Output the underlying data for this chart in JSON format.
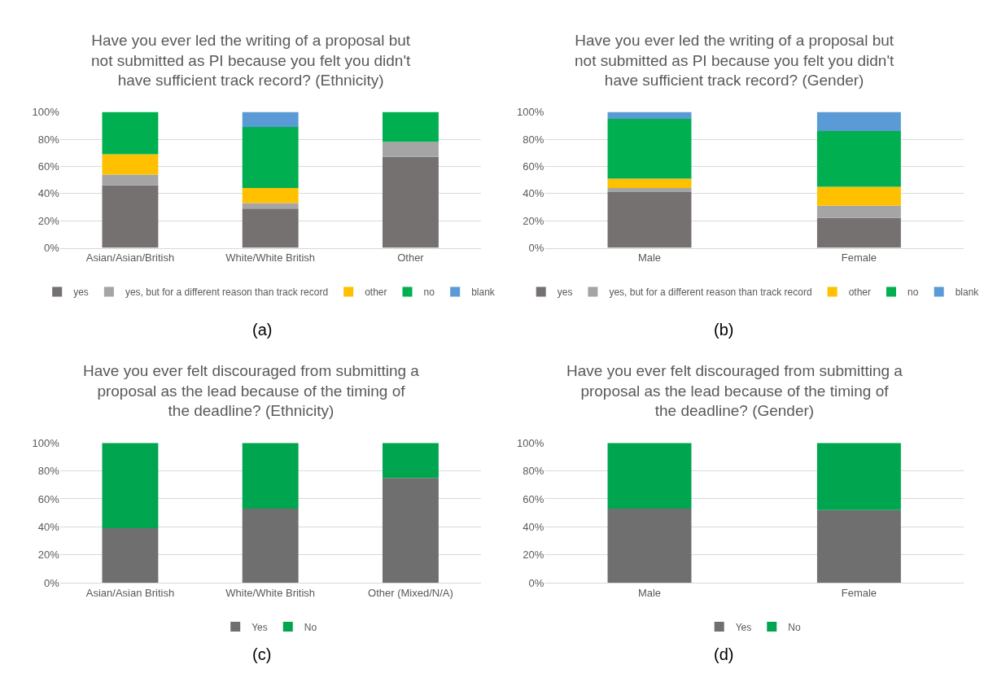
{
  "chart_data": [
    {
      "type": "bar",
      "stacked": true,
      "title": "Have you ever led the writing of a proposal but not submitted as PI because you felt you didn't have sufficient track record? (Ethnicity)",
      "categories": [
        "Asian/Asian/British",
        "White/White British",
        "Other"
      ],
      "series": [
        {
          "name": "yes",
          "color": "#767171",
          "values": [
            46,
            29,
            67
          ]
        },
        {
          "name": "yes, but for a different reason than track record",
          "color": "#a5a5a5",
          "values": [
            8,
            4,
            11
          ]
        },
        {
          "name": "other",
          "color": "#ffc000",
          "values": [
            15,
            11,
            0
          ]
        },
        {
          "name": "no",
          "color": "#00b050",
          "values": [
            31,
            45,
            22
          ]
        },
        {
          "name": "blank",
          "color": "#5b9bd5",
          "values": [
            0,
            11,
            0
          ]
        }
      ],
      "ylim": [
        0,
        100
      ],
      "yticks": [
        {
          "value": 0,
          "label": "0%"
        },
        {
          "value": 20,
          "label": "20%"
        },
        {
          "value": 40,
          "label": "40%"
        },
        {
          "value": 60,
          "label": "60%"
        },
        {
          "value": 80,
          "label": "80%"
        },
        {
          "value": 100,
          "label": "100%"
        }
      ],
      "grid": "y",
      "legend": "bottom",
      "annotations": [
        "(a)"
      ]
    },
    {
      "type": "bar",
      "stacked": true,
      "title": "Have you ever led the writing of a proposal but not submitted as PI because you felt you didn't have sufficient track record? (Gender)",
      "categories": [
        "Male",
        "Female"
      ],
      "series": [
        {
          "name": "yes",
          "color": "#767171",
          "values": [
            41,
            22
          ]
        },
        {
          "name": "yes, but for a different reason than track record",
          "color": "#a5a5a5",
          "values": [
            3,
            9
          ]
        },
        {
          "name": "other",
          "color": "#ffc000",
          "values": [
            7,
            14
          ]
        },
        {
          "name": "no",
          "color": "#00b050",
          "values": [
            44,
            41
          ]
        },
        {
          "name": "blank",
          "color": "#5b9bd5",
          "values": [
            5,
            14
          ]
        }
      ],
      "ylim": [
        0,
        100
      ],
      "yticks": [
        {
          "value": 0,
          "label": "0%"
        },
        {
          "value": 20,
          "label": "20%"
        },
        {
          "value": 40,
          "label": "40%"
        },
        {
          "value": 60,
          "label": "60%"
        },
        {
          "value": 80,
          "label": "80%"
        },
        {
          "value": 100,
          "label": "100%"
        }
      ],
      "grid": "y",
      "legend": "bottom",
      "annotations": [
        "(b)"
      ]
    },
    {
      "type": "bar",
      "stacked": true,
      "title": "Have you ever felt discouraged from submitting a proposal as the lead because of the timing of the deadline? (Ethnicity)",
      "categories": [
        "Asian/Asian British",
        "White/White British",
        "Other (Mixed/N/A)"
      ],
      "series": [
        {
          "name": "Yes",
          "color": "#6f6f6f",
          "values": [
            39,
            53,
            75
          ]
        },
        {
          "name": "No",
          "color": "#00a550",
          "values": [
            61,
            47,
            25
          ]
        }
      ],
      "ylim": [
        0,
        100
      ],
      "yticks": [
        {
          "value": 0,
          "label": "0%"
        },
        {
          "value": 20,
          "label": "20%"
        },
        {
          "value": 40,
          "label": "40%"
        },
        {
          "value": 60,
          "label": "60%"
        },
        {
          "value": 80,
          "label": "80%"
        },
        {
          "value": 100,
          "label": "100%"
        }
      ],
      "grid": "y",
      "legend": "bottom",
      "annotations": [
        "(c)"
      ]
    },
    {
      "type": "bar",
      "stacked": true,
      "title": "Have you ever felt discouraged from submitting a proposal as the lead because of the timing of the deadline? (Gender)",
      "categories": [
        "Male",
        "Female"
      ],
      "series": [
        {
          "name": "Yes",
          "color": "#6f6f6f",
          "values": [
            53,
            52
          ]
        },
        {
          "name": "No",
          "color": "#00a550",
          "values": [
            47,
            48
          ]
        }
      ],
      "ylim": [
        0,
        100
      ],
      "yticks": [
        {
          "value": 0,
          "label": "0%"
        },
        {
          "value": 20,
          "label": "20%"
        },
        {
          "value": 40,
          "label": "40%"
        },
        {
          "value": 60,
          "label": "60%"
        },
        {
          "value": 80,
          "label": "80%"
        },
        {
          "value": 100,
          "label": "100%"
        }
      ],
      "grid": "y",
      "legend": "bottom",
      "annotations": [
        "(d)"
      ]
    }
  ]
}
